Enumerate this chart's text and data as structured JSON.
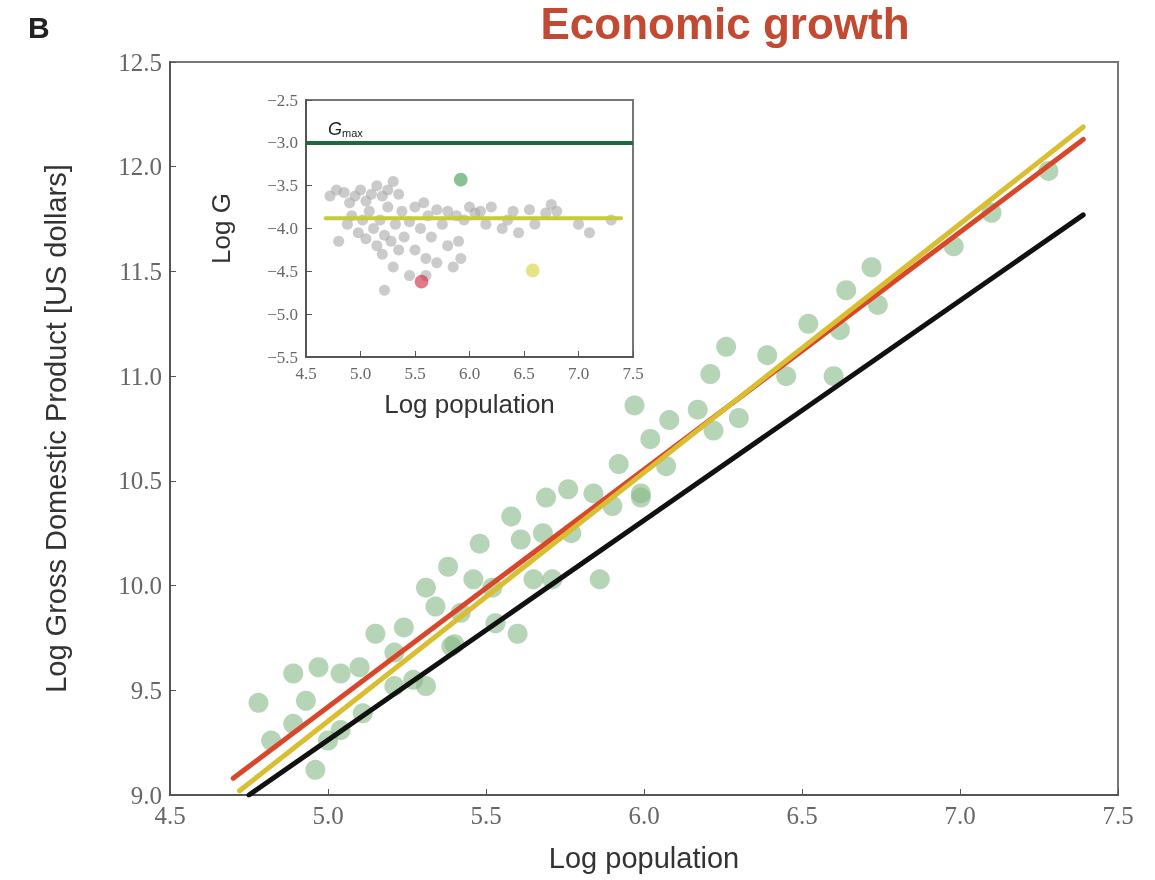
{
  "chart_data": [
    {
      "type": "scatter",
      "title": "Economic growth",
      "annotations": [
        "B"
      ],
      "xlabel": "Log population",
      "ylabel": "Log Gross Domestic Product [US dollars]",
      "xlim": [
        4.5,
        7.5
      ],
      "xticks": [
        4.5,
        {
          "value": 5.0,
          "label": "5.0"
        },
        5.5,
        {
          "value": 6.0,
          "label": "6.0"
        },
        6.5,
        {
          "value": 7.0,
          "label": "7.0"
        },
        7.5
      ],
      "ylim": [
        9.0,
        12.5
      ],
      "yticks": [
        {
          "value": 9.0,
          "label": "9.0"
        },
        9.5,
        {
          "value": 10.0,
          "label": "10.0"
        },
        10.5,
        {
          "value": 11.0,
          "label": "11.0"
        },
        11.5,
        {
          "value": 12.0,
          "label": "12.0"
        },
        12.5
      ],
      "marker": "circle",
      "grid": false,
      "series": [
        {
          "type": "scatter",
          "color": "#86b886",
          "x": [
            4.78,
            4.89,
            4.93,
            4.89,
            4.96,
            5.04,
            4.97,
            5.04,
            5.1,
            5.11,
            5.15,
            5.21,
            5.24,
            5.27,
            5.21,
            5.31,
            5.31,
            5.38,
            5.34,
            5.42,
            5.39,
            5.48,
            5.46,
            5.52,
            5.53,
            5.6,
            5.58,
            5.61,
            5.65,
            5.71,
            5.69,
            5.76,
            5.68,
            5.77,
            5.86,
            5.84,
            5.92,
            5.9,
            5.99,
            5.97,
            6.02,
            5.4,
            4.82,
            5.0,
            6.07,
            5.99,
            6.08,
            6.17,
            6.22,
            6.3,
            6.21,
            6.26,
            6.39,
            6.45,
            6.52,
            6.6,
            6.62,
            6.64,
            6.72,
            6.74,
            6.98,
            7.1,
            7.28
          ],
          "values": [
            9.44,
            9.58,
            9.45,
            9.34,
            9.12,
            9.31,
            9.61,
            9.58,
            9.61,
            9.39,
            9.77,
            9.68,
            9.8,
            9.55,
            9.52,
            9.52,
            9.99,
            10.09,
            9.9,
            9.87,
            9.71,
            10.2,
            10.03,
            9.99,
            9.82,
            9.77,
            10.33,
            10.22,
            10.03,
            10.03,
            10.42,
            10.46,
            10.25,
            10.25,
            10.03,
            10.44,
            10.58,
            10.38,
            10.44,
            10.86,
            10.7,
            9.72,
            9.26,
            9.26,
            10.57,
            10.42,
            10.79,
            10.84,
            10.74,
            10.8,
            11.01,
            11.14,
            11.1,
            11.0,
            11.25,
            11.0,
            11.22,
            11.41,
            11.52,
            11.34,
            11.62,
            11.78,
            11.98
          ]
        },
        {
          "type": "line",
          "marker": "none",
          "color": "#111111",
          "x": [
            4.75,
            7.39
          ],
          "values": [
            9.0,
            11.77
          ]
        },
        {
          "type": "line",
          "marker": "none",
          "color": "#d9472b",
          "x": [
            4.7,
            7.39
          ],
          "values": [
            9.08,
            12.13
          ]
        },
        {
          "type": "line",
          "marker": "none",
          "color": "#d8be30",
          "x": [
            4.72,
            7.39
          ],
          "values": [
            9.02,
            12.19
          ]
        }
      ]
    },
    {
      "type": "scatter",
      "xlabel": "Log population",
      "ylabel": "Log G",
      "xlim": [
        4.5,
        7.5
      ],
      "xticks": [
        4.5,
        {
          "value": 5.0,
          "label": "5.0"
        },
        5.5,
        {
          "value": 6.0,
          "label": "6.0"
        },
        6.5,
        {
          "value": 7.0,
          "label": "7.0"
        },
        7.5
      ],
      "ylim": [
        -5.5,
        -2.5
      ],
      "yticks": [
        {
          "value": -5.5,
          "label": "−5.5"
        },
        {
          "value": -5.0,
          "label": "−5.0"
        },
        {
          "value": -4.5,
          "label": "−4.5"
        },
        {
          "value": -4.0,
          "label": "−4.0"
        },
        {
          "value": -3.5,
          "label": "−3.5"
        },
        {
          "value": -3.0,
          "label": "−3.0"
        },
        {
          "value": -2.5,
          "label": "−2.5"
        }
      ],
      "marker": "circle",
      "grid": false,
      "ref_lines": [
        {
          "axis": "y",
          "value": -3.0,
          "label": "G$_{max}$",
          "color": "#1b6b3b"
        }
      ],
      "series": [
        {
          "type": "scatter",
          "color": "#a8a8a8",
          "x": [
            4.72,
            4.78,
            4.85,
            4.9,
            4.95,
            5.0,
            5.05,
            5.1,
            5.15,
            5.2,
            5.25,
            5.3,
            5.35,
            4.8,
            4.88,
            4.92,
            4.98,
            5.02,
            5.05,
            5.08,
            5.12,
            5.15,
            5.18,
            5.2,
            5.22,
            5.25,
            5.28,
            5.3,
            5.32,
            5.35,
            5.38,
            5.4,
            5.45,
            5.45,
            5.5,
            5.5,
            5.55,
            5.58,
            5.6,
            5.62,
            5.65,
            5.7,
            5.7,
            5.75,
            5.8,
            5.8,
            5.85,
            5.88,
            5.9,
            5.95,
            6.0,
            6.05,
            6.1,
            6.15,
            6.2,
            6.3,
            6.35,
            6.4,
            6.45,
            6.55,
            6.6,
            6.7,
            6.75,
            6.8,
            7.0,
            7.1,
            7.3,
            5.22,
            5.6,
            5.92
          ],
          "values": [
            -3.62,
            -3.55,
            -3.58,
            -3.7,
            -3.62,
            -3.55,
            -3.68,
            -3.6,
            -3.5,
            -3.62,
            -3.55,
            -3.45,
            -3.6,
            -4.15,
            -3.95,
            -3.85,
            -4.05,
            -3.9,
            -4.12,
            -3.8,
            -4.0,
            -4.2,
            -3.9,
            -4.3,
            -4.08,
            -3.75,
            -4.15,
            -4.45,
            -3.95,
            -4.25,
            -3.8,
            -4.1,
            -3.92,
            -4.55,
            -3.75,
            -4.25,
            -4.0,
            -3.7,
            -4.35,
            -3.85,
            -4.1,
            -3.78,
            -4.4,
            -3.95,
            -3.8,
            -4.2,
            -4.45,
            -3.85,
            -4.15,
            -3.9,
            -3.75,
            -3.82,
            -3.8,
            -3.95,
            -3.75,
            -4.0,
            -3.9,
            -3.8,
            -4.05,
            -3.78,
            -3.95,
            -3.82,
            -3.72,
            -3.8,
            -3.95,
            -4.05,
            -3.9,
            -4.72,
            -4.55,
            -4.35
          ]
        },
        {
          "type": "line",
          "marker": "none",
          "color": "#c5cc3c",
          "x": [
            4.68,
            7.39
          ],
          "values": [
            -3.88,
            -3.88
          ]
        },
        {
          "type": "scatter",
          "color": "#3a9a4a",
          "x": [
            5.92
          ],
          "values": [
            -3.43
          ]
        },
        {
          "type": "scatter",
          "color": "#d0213a",
          "x": [
            5.56
          ],
          "values": [
            -4.62
          ]
        },
        {
          "type": "scatter",
          "color": "#d4d030",
          "x": [
            6.58
          ],
          "values": [
            -4.49
          ]
        }
      ]
    }
  ]
}
